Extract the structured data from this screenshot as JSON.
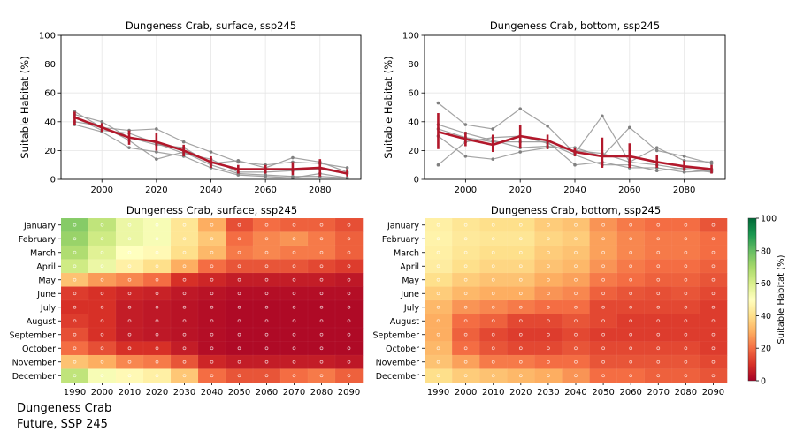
{
  "caption": {
    "line1": "Dungeness Crab",
    "line2": "Future, SSP 245"
  },
  "colorbar": {
    "label": "Suitable Habitat (%)",
    "ticks": [
      0,
      20,
      40,
      60,
      80,
      100
    ],
    "range": [
      0,
      100
    ],
    "colormap": "RdYlGn"
  },
  "colors": {
    "mean_line": "#b2182b",
    "member_line": "#999999",
    "grid": "#e6e6e6"
  },
  "chart_data": [
    {
      "type": "line",
      "title": "Dungeness Crab, surface, ssp245",
      "xlabel": "",
      "ylabel": "Suitable Habitat (%)",
      "xlim": [
        1985,
        2095
      ],
      "ylim": [
        0,
        100
      ],
      "xticks": [
        2000,
        2020,
        2040,
        2060,
        2080
      ],
      "yticks": [
        0,
        20,
        40,
        60,
        80,
        100
      ],
      "grid": true,
      "x": [
        1990,
        2000,
        2010,
        2020,
        2030,
        2040,
        2050,
        2060,
        2070,
        2080,
        2090
      ],
      "mean": [
        43,
        36,
        29,
        26,
        20,
        12,
        7,
        7,
        7,
        8,
        4
      ],
      "error_low": [
        38,
        33,
        24,
        20,
        16,
        8,
        4,
        4,
        3,
        2,
        2
      ],
      "error_high": [
        47,
        39,
        34,
        32,
        24,
        16,
        10,
        10,
        12,
        14,
        7
      ],
      "series": [
        {
          "values": [
            47,
            36,
            34,
            35,
            26,
            19,
            12,
            10,
            12,
            11,
            8
          ]
        },
        {
          "values": [
            45,
            40,
            29,
            24,
            22,
            11,
            13,
            8,
            15,
            12,
            5
          ]
        },
        {
          "values": [
            43,
            34,
            32,
            25,
            18,
            14,
            5,
            5,
            6,
            7,
            4
          ]
        },
        {
          "values": [
            40,
            37,
            27,
            14,
            19,
            10,
            4,
            3,
            2,
            2,
            1
          ]
        },
        {
          "values": [
            38,
            33,
            22,
            19,
            16,
            8,
            3,
            2,
            1,
            4,
            1
          ]
        }
      ]
    },
    {
      "type": "line",
      "title": "Dungeness Crab, bottom, ssp245",
      "xlabel": "",
      "ylabel": "Suitable Habitat (%)",
      "xlim": [
        1985,
        2095
      ],
      "ylim": [
        0,
        100
      ],
      "xticks": [
        2000,
        2020,
        2040,
        2060,
        2080
      ],
      "yticks": [
        0,
        20,
        40,
        60,
        80,
        100
      ],
      "grid": true,
      "x": [
        1990,
        2000,
        2010,
        2020,
        2030,
        2040,
        2050,
        2060,
        2070,
        2080,
        2090
      ],
      "mean": [
        33,
        28,
        24,
        30,
        27,
        19,
        16,
        16,
        12,
        9,
        7
      ],
      "error_low": [
        21,
        23,
        19,
        22,
        21,
        16,
        8,
        8,
        8,
        6,
        4
      ],
      "error_high": [
        46,
        33,
        31,
        38,
        31,
        22,
        29,
        25,
        17,
        13,
        10
      ],
      "series": [
        {
          "values": [
            53,
            38,
            35,
            49,
            37,
            18,
            44,
            12,
            22,
            13,
            12
          ]
        },
        {
          "values": [
            30,
            16,
            14,
            19,
            22,
            22,
            16,
            36,
            20,
            16,
            11
          ]
        },
        {
          "values": [
            10,
            26,
            29,
            30,
            25,
            17,
            10,
            10,
            6,
            8,
            7
          ]
        },
        {
          "values": [
            38,
            32,
            27,
            22,
            23,
            20,
            18,
            12,
            10,
            7,
            5
          ]
        },
        {
          "values": [
            35,
            29,
            26,
            26,
            26,
            10,
            12,
            8,
            8,
            5,
            6
          ]
        }
      ]
    },
    {
      "type": "heatmap",
      "title": "Dungeness Crab, surface, ssp245",
      "columns": [
        "1990",
        "2000",
        "2010",
        "2020",
        "2030",
        "2040",
        "2050",
        "2060",
        "2070",
        "2080",
        "2090"
      ],
      "rows": [
        "January",
        "February",
        "March",
        "April",
        "May",
        "June",
        "July",
        "August",
        "September",
        "October",
        "November",
        "December"
      ],
      "values": [
        [
          75,
          65,
          55,
          52,
          42,
          30,
          15,
          20,
          18,
          18,
          15
        ],
        [
          72,
          62,
          55,
          52,
          42,
          35,
          20,
          24,
          26,
          22,
          18
        ],
        [
          68,
          58,
          50,
          48,
          40,
          32,
          22,
          24,
          22,
          22,
          18
        ],
        [
          62,
          55,
          45,
          40,
          30,
          20,
          16,
          16,
          16,
          14,
          12
        ],
        [
          34,
          27,
          24,
          20,
          10,
          8,
          6,
          6,
          6,
          6,
          5
        ],
        [
          12,
          10,
          8,
          7,
          5,
          4,
          3,
          3,
          3,
          3,
          3
        ],
        [
          10,
          10,
          6,
          5,
          4,
          3,
          2,
          2,
          2,
          2,
          2
        ],
        [
          12,
          10,
          6,
          5,
          4,
          3,
          2,
          2,
          2,
          2,
          2
        ],
        [
          15,
          10,
          6,
          5,
          4,
          3,
          2,
          2,
          2,
          2,
          2
        ],
        [
          20,
          15,
          10,
          10,
          6,
          3,
          2,
          2,
          2,
          2,
          2
        ],
        [
          34,
          30,
          24,
          22,
          16,
          8,
          6,
          6,
          6,
          6,
          5
        ],
        [
          65,
          52,
          48,
          45,
          35,
          20,
          16,
          16,
          20,
          22,
          18
        ]
      ]
    },
    {
      "type": "heatmap",
      "title": "Dungeness Crab, bottom, ssp245",
      "columns": [
        "1990",
        "2000",
        "2010",
        "2020",
        "2030",
        "2040",
        "2050",
        "2060",
        "2070",
        "2080",
        "2090"
      ],
      "rows": [
        "January",
        "February",
        "March",
        "April",
        "May",
        "June",
        "July",
        "August",
        "September",
        "October",
        "November",
        "December"
      ],
      "values": [
        [
          45,
          42,
          40,
          40,
          36,
          34,
          26,
          22,
          20,
          20,
          16
        ],
        [
          46,
          43,
          42,
          42,
          38,
          36,
          28,
          24,
          22,
          22,
          20
        ],
        [
          45,
          42,
          40,
          40,
          36,
          34,
          28,
          24,
          22,
          22,
          20
        ],
        [
          44,
          40,
          38,
          38,
          34,
          32,
          26,
          22,
          20,
          20,
          18
        ],
        [
          40,
          36,
          34,
          34,
          30,
          28,
          22,
          20,
          18,
          18,
          16
        ],
        [
          36,
          32,
          30,
          30,
          26,
          24,
          18,
          16,
          15,
          16,
          14
        ],
        [
          32,
          26,
          24,
          22,
          20,
          20,
          14,
          14,
          14,
          14,
          12
        ],
        [
          30,
          20,
          18,
          14,
          14,
          16,
          14,
          12,
          12,
          12,
          12
        ],
        [
          30,
          18,
          14,
          12,
          12,
          14,
          12,
          12,
          12,
          12,
          12
        ],
        [
          32,
          20,
          16,
          14,
          14,
          16,
          14,
          14,
          14,
          14,
          12
        ],
        [
          34,
          28,
          22,
          22,
          20,
          20,
          16,
          16,
          16,
          16,
          14
        ],
        [
          40,
          36,
          34,
          32,
          30,
          26,
          20,
          20,
          18,
          18,
          16
        ]
      ]
    }
  ]
}
